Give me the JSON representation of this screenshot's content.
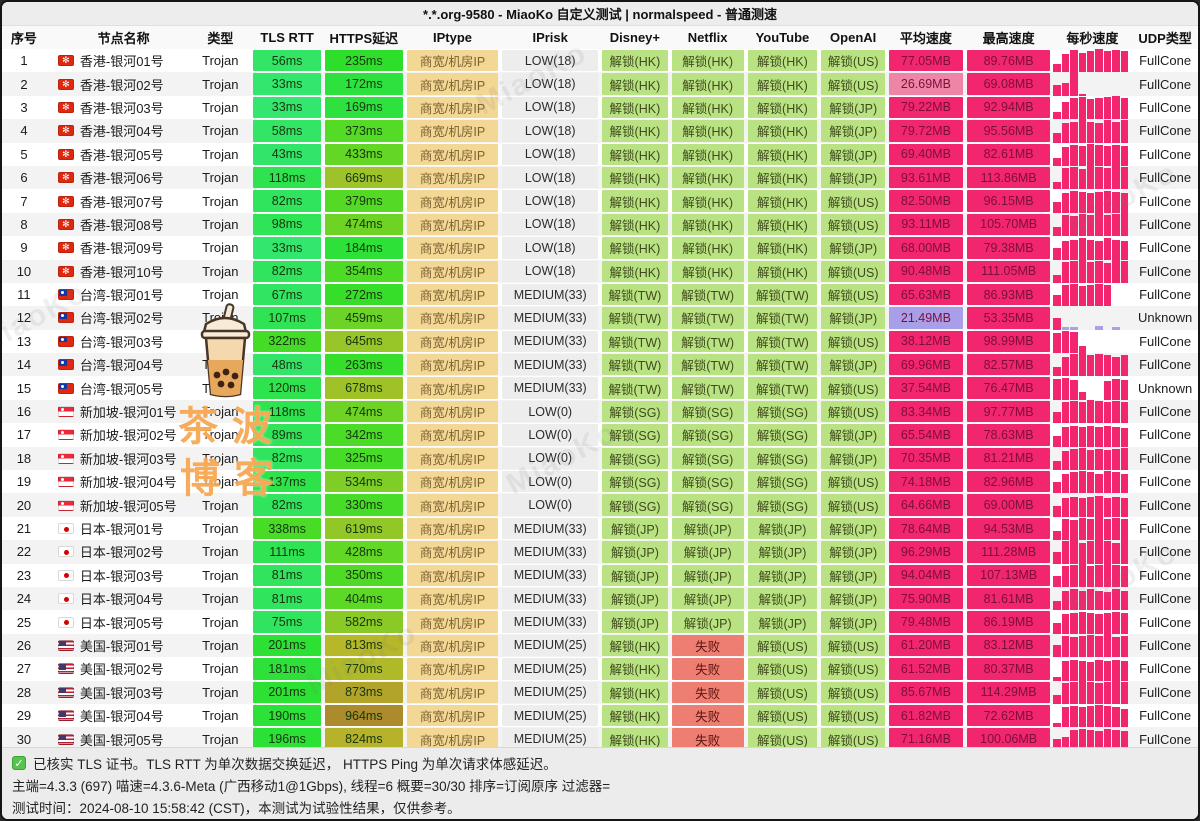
{
  "title": "*.*.org-9580 - MiaoKo 自定义测试 | normalspeed - 普通测速",
  "columns": [
    "序号",
    "节点名称",
    "类型",
    "TLS RTT",
    "HTTPS延迟",
    "IPtype",
    "IPrisk",
    "Disney+",
    "Netflix",
    "YouTube",
    "OpenAI",
    "平均速度",
    "最高速度",
    "每秒速度",
    "UDP类型"
  ],
  "colors": {
    "accent_pink": "#f2266e",
    "lat_green_fast": "#2edc70",
    "lat_brown_slow": "#ab8a2b",
    "unlock_green": "#b9e383",
    "fail_red": "#ee7e72",
    "iptype_tan": "#f3d795",
    "avg_light_pink": "#ee85a6",
    "avg_lavender": "#a89fe8",
    "bar_lavender": "#aca0e8"
  },
  "watermark": {
    "brand": "MiaoKo",
    "text1": "茶波",
    "text2": "博客"
  },
  "footer": {
    "line1": "已核实 TLS 证书。TLS RTT 为单次数据交换延迟， HTTPS Ping 为单次请求体感延迟。",
    "line2": "主端=4.3.3 (697) 喵速=4.3.6-Meta (广西移动1@1Gbps), 线程=6 概要=30/30 排序=订阅原序 过滤器=",
    "line3": "测试时间：2024-08-10 15:58:42 (CST)，本测试为试验性结果，仅供参考。"
  },
  "rows": [
    {
      "n": 1,
      "flag": "HK",
      "name": "香港-银河01号",
      "type": "Trojan",
      "tls": "56ms",
      "https": "235ms",
      "iptype": "商宽/机房IP",
      "risk": "LOW(18)",
      "disney": "解锁(HK)",
      "netflix": "解锁(HK)",
      "youtube": "解锁(HK)",
      "openai": "解锁(US)",
      "avg": "77.05MB",
      "max": "89.76MB",
      "udp": "FullCone",
      "bars": [
        0.35,
        0.8,
        0.95,
        0.85,
        0.9,
        1,
        0.9,
        0.95,
        0.9
      ]
    },
    {
      "n": 2,
      "flag": "HK",
      "name": "香港-银河02号",
      "type": "Trojan",
      "tls": "33ms",
      "https": "172ms",
      "iptype": "商宽/机房IP",
      "risk": "LOW(18)",
      "disney": "解锁(HK)",
      "netflix": "解锁(HK)",
      "youtube": "解锁(HK)",
      "openai": "解锁(US)",
      "avg": "26.69MB",
      "max": "69.08MB",
      "udp": "FullCone",
      "avg_bg": "#ee85a6",
      "bars": [
        0.45,
        0.55,
        1,
        0.06,
        0,
        0,
        0,
        0,
        0
      ]
    },
    {
      "n": 3,
      "flag": "HK",
      "name": "香港-银河03号",
      "type": "Trojan",
      "tls": "33ms",
      "https": "169ms",
      "iptype": "商宽/机房IP",
      "risk": "LOW(18)",
      "disney": "解锁(HK)",
      "netflix": "解锁(HK)",
      "youtube": "解锁(HK)",
      "openai": "解锁(JP)",
      "avg": "79.22MB",
      "max": "92.94MB",
      "udp": "FullCone",
      "bars": [
        0.3,
        0.75,
        0.9,
        0.95,
        0.85,
        0.9,
        0.95,
        1,
        0.9
      ]
    },
    {
      "n": 4,
      "flag": "HK",
      "name": "香港-银河04号",
      "type": "Trojan",
      "tls": "58ms",
      "https": "373ms",
      "iptype": "商宽/机房IP",
      "risk": "LOW(18)",
      "disney": "解锁(HK)",
      "netflix": "解锁(HK)",
      "youtube": "解锁(HK)",
      "openai": "解锁(JP)",
      "avg": "79.72MB",
      "max": "95.56MB",
      "udp": "FullCone",
      "bars": [
        0.4,
        0.85,
        0.9,
        1,
        0.9,
        0.85,
        0.95,
        0.9,
        0.95
      ]
    },
    {
      "n": 5,
      "flag": "HK",
      "name": "香港-银河05号",
      "type": "Trojan",
      "tls": "43ms",
      "https": "433ms",
      "iptype": "商宽/机房IP",
      "risk": "LOW(18)",
      "disney": "解锁(HK)",
      "netflix": "解锁(HK)",
      "youtube": "解锁(HK)",
      "openai": "解锁(JP)",
      "avg": "69.40MB",
      "max": "82.61MB",
      "udp": "FullCone",
      "bars": [
        0.35,
        0.8,
        0.9,
        0.85,
        0.95,
        0.9,
        0.85,
        0.9,
        0.85
      ]
    },
    {
      "n": 6,
      "flag": "HK",
      "name": "香港-银河06号",
      "type": "Trojan",
      "tls": "118ms",
      "https": "669ms",
      "iptype": "商宽/机房IP",
      "risk": "LOW(18)",
      "disney": "解锁(HK)",
      "netflix": "解锁(HK)",
      "youtube": "解锁(HK)",
      "openai": "解锁(JP)",
      "avg": "93.61MB",
      "max": "113.86MB",
      "udp": "FullCone",
      "bars": [
        0.3,
        0.9,
        0.95,
        0.85,
        1,
        0.95,
        0.9,
        1,
        0.95
      ]
    },
    {
      "n": 7,
      "flag": "HK",
      "name": "香港-银河07号",
      "type": "Trojan",
      "tls": "82ms",
      "https": "379ms",
      "iptype": "商宽/机房IP",
      "risk": "LOW(18)",
      "disney": "解锁(HK)",
      "netflix": "解锁(HK)",
      "youtube": "解锁(HK)",
      "openai": "解锁(US)",
      "avg": "82.50MB",
      "max": "96.15MB",
      "udp": "FullCone",
      "bars": [
        0.45,
        0.85,
        0.95,
        0.9,
        0.85,
        0.9,
        0.95,
        0.9,
        0.85
      ]
    },
    {
      "n": 8,
      "flag": "HK",
      "name": "香港-银河08号",
      "type": "Trojan",
      "tls": "98ms",
      "https": "474ms",
      "iptype": "商宽/机房IP",
      "risk": "LOW(18)",
      "disney": "解锁(HK)",
      "netflix": "解锁(HK)",
      "youtube": "解锁(HK)",
      "openai": "解锁(US)",
      "avg": "93.11MB",
      "max": "105.70MB",
      "udp": "FullCone",
      "bars": [
        0.4,
        0.9,
        0.85,
        0.95,
        0.9,
        1,
        0.9,
        0.95,
        1
      ]
    },
    {
      "n": 9,
      "flag": "HK",
      "name": "香港-银河09号",
      "type": "Trojan",
      "tls": "33ms",
      "https": "184ms",
      "iptype": "商宽/机房IP",
      "risk": "LOW(18)",
      "disney": "解锁(HK)",
      "netflix": "解锁(HK)",
      "youtube": "解锁(HK)",
      "openai": "解锁(JP)",
      "avg": "68.00MB",
      "max": "79.38MB",
      "udp": "FullCone",
      "bars": [
        0.5,
        0.8,
        0.85,
        0.9,
        0.85,
        0.8,
        0.9,
        0.85,
        0.8
      ]
    },
    {
      "n": 10,
      "flag": "HK",
      "name": "香港-银河10号",
      "type": "Trojan",
      "tls": "82ms",
      "https": "354ms",
      "iptype": "商宽/机房IP",
      "risk": "LOW(18)",
      "disney": "解锁(HK)",
      "netflix": "解锁(HK)",
      "youtube": "解锁(HK)",
      "openai": "解锁(US)",
      "avg": "90.48MB",
      "max": "111.05MB",
      "udp": "FullCone",
      "bars": [
        0.35,
        0.9,
        0.95,
        1,
        0.9,
        0.95,
        0.85,
        1,
        0.95
      ]
    },
    {
      "n": 11,
      "flag": "TW",
      "name": "台湾-银河01号",
      "type": "Trojan",
      "tls": "67ms",
      "https": "272ms",
      "iptype": "商宽/机房IP",
      "risk": "MEDIUM(33)",
      "disney": "解锁(TW)",
      "netflix": "解锁(TW)",
      "youtube": "解锁(TW)",
      "openai": "解锁(US)",
      "avg": "65.63MB",
      "max": "86.93MB",
      "udp": "FullCone",
      "bars": [
        0.5,
        0.9,
        0.95,
        0.85,
        0.9,
        0.95,
        0.9,
        0,
        0
      ]
    },
    {
      "n": 12,
      "flag": "TW",
      "name": "台湾-银河02号",
      "type": "Trojan",
      "tls": "107ms",
      "https": "459ms",
      "iptype": "商宽/机房IP",
      "risk": "MEDIUM(33)",
      "disney": "解锁(TW)",
      "netflix": "解锁(TW)",
      "youtube": "解锁(TW)",
      "openai": "解锁(JP)",
      "avg": "21.49MB",
      "max": "53.35MB",
      "udp": "Unknown",
      "avg_bg": "#a89fe8",
      "bars": [
        0.5,
        0.12,
        0.1,
        0,
        0,
        0.14,
        0,
        0.1,
        0
      ],
      "bar_colors": [
        "#f2266e",
        "#aca0e8",
        "#aca0e8",
        "#aca0e8",
        "#aca0e8",
        "#aca0e8",
        "#aca0e8",
        "#aca0e8",
        "#aca0e8"
      ]
    },
    {
      "n": 13,
      "flag": "TW",
      "name": "台湾-银河03号",
      "type": "Trojan",
      "tls": "322ms",
      "https": "645ms",
      "iptype": "商宽/机房IP",
      "risk": "MEDIUM(33)",
      "disney": "解锁(TW)",
      "netflix": "解锁(TW)",
      "youtube": "解锁(TW)",
      "openai": "解锁(US)",
      "avg": "38.12MB",
      "max": "98.99MB",
      "udp": "FullCone",
      "bars": [
        0.85,
        0.95,
        0.9,
        0.3,
        0,
        0,
        0,
        0,
        0
      ]
    },
    {
      "n": 14,
      "flag": "TW",
      "name": "台湾-银河04号",
      "type": "Trojan",
      "tls": "48ms",
      "https": "263ms",
      "iptype": "商宽/机房IP",
      "risk": "MEDIUM(33)",
      "disney": "解锁(TW)",
      "netflix": "解锁(TW)",
      "youtube": "解锁(TW)",
      "openai": "解锁(JP)",
      "avg": "69.96MB",
      "max": "82.57MB",
      "udp": "FullCone",
      "bars": [
        0.4,
        0.85,
        0.95,
        1,
        0.9,
        0.95,
        0.9,
        0.85,
        0.9
      ]
    },
    {
      "n": 15,
      "flag": "TW",
      "name": "台湾-银河05号",
      "type": "Trojan",
      "tls": "120ms",
      "https": "678ms",
      "iptype": "商宽/机房IP",
      "risk": "MEDIUM(33)",
      "disney": "解锁(TW)",
      "netflix": "解锁(TW)",
      "youtube": "解锁(TW)",
      "openai": "解锁(US)",
      "avg": "37.54MB",
      "max": "76.47MB",
      "udp": "Unknown",
      "bars": [
        0.9,
        0.95,
        0.85,
        0.35,
        0,
        0,
        0.8,
        0.9,
        0.85
      ]
    },
    {
      "n": 16,
      "flag": "SG",
      "name": "新加坡-银河01号",
      "type": "Trojan",
      "tls": "118ms",
      "https": "474ms",
      "iptype": "商宽/机房IP",
      "risk": "LOW(0)",
      "disney": "解锁(SG)",
      "netflix": "解锁(SG)",
      "youtube": "解锁(SG)",
      "openai": "解锁(US)",
      "avg": "83.34MB",
      "max": "97.77MB",
      "udp": "FullCone",
      "bars": [
        0.5,
        0.9,
        0.95,
        0.9,
        1,
        0.95,
        0.9,
        0.95,
        0.9
      ]
    },
    {
      "n": 17,
      "flag": "SG",
      "name": "新加坡-银河02号",
      "type": "Trojan",
      "tls": "89ms",
      "https": "342ms",
      "iptype": "商宽/机房IP",
      "risk": "LOW(0)",
      "disney": "解锁(SG)",
      "netflix": "解锁(SG)",
      "youtube": "解锁(SG)",
      "openai": "解锁(JP)",
      "avg": "65.54MB",
      "max": "78.63MB",
      "udp": "FullCone",
      "bars": [
        0.45,
        0.85,
        0.9,
        0.85,
        0.9,
        0.85,
        0.9,
        0.85,
        0.8
      ]
    },
    {
      "n": 18,
      "flag": "SG",
      "name": "新加坡-银河03号",
      "type": "Trojan",
      "tls": "82ms",
      "https": "325ms",
      "iptype": "商宽/机房IP",
      "risk": "LOW(0)",
      "disney": "解锁(SG)",
      "netflix": "解锁(SG)",
      "youtube": "解锁(SG)",
      "openai": "解锁(JP)",
      "avg": "70.35MB",
      "max": "81.21MB",
      "udp": "FullCone",
      "bars": [
        0.4,
        0.8,
        0.9,
        0.95,
        0.85,
        0.9,
        0.85,
        0.9,
        0.95
      ]
    },
    {
      "n": 19,
      "flag": "SG",
      "name": "新加坡-银河04号",
      "type": "Trojan",
      "tls": "137ms",
      "https": "534ms",
      "iptype": "商宽/机房IP",
      "risk": "LOW(0)",
      "disney": "解锁(SG)",
      "netflix": "解锁(SG)",
      "youtube": "解锁(SG)",
      "openai": "解锁(US)",
      "avg": "74.18MB",
      "max": "82.96MB",
      "udp": "FullCone",
      "bars": [
        0.5,
        0.85,
        0.9,
        0.95,
        0.9,
        0.85,
        0.95,
        0.9,
        0.85
      ]
    },
    {
      "n": 20,
      "flag": "SG",
      "name": "新加坡-银河05号",
      "type": "Trojan",
      "tls": "82ms",
      "https": "330ms",
      "iptype": "商宽/机房IP",
      "risk": "LOW(0)",
      "disney": "解锁(SG)",
      "netflix": "解锁(SG)",
      "youtube": "解锁(SG)",
      "openai": "解锁(US)",
      "avg": "64.66MB",
      "max": "69.00MB",
      "udp": "FullCone",
      "bars": [
        0.45,
        0.8,
        0.85,
        0.8,
        0.85,
        0.9,
        0.8,
        0.85,
        0.8
      ]
    },
    {
      "n": 21,
      "flag": "JP",
      "name": "日本-银河01号",
      "type": "Trojan",
      "tls": "338ms",
      "https": "619ms",
      "iptype": "商宽/机房IP",
      "risk": "MEDIUM(33)",
      "disney": "解锁(JP)",
      "netflix": "解锁(JP)",
      "youtube": "解锁(JP)",
      "openai": "解锁(JP)",
      "avg": "78.64MB",
      "max": "94.53MB",
      "udp": "FullCone",
      "bars": [
        0.4,
        0.9,
        0.85,
        0.95,
        0.9,
        1,
        0.9,
        0.95,
        0.9
      ]
    },
    {
      "n": 22,
      "flag": "JP",
      "name": "日本-银河02号",
      "type": "Trojan",
      "tls": "111ms",
      "https": "428ms",
      "iptype": "商宽/机房IP",
      "risk": "MEDIUM(33)",
      "disney": "解锁(JP)",
      "netflix": "解锁(JP)",
      "youtube": "解锁(JP)",
      "openai": "解锁(JP)",
      "avg": "96.29MB",
      "max": "111.28MB",
      "udp": "FullCone",
      "bars": [
        0.5,
        0.95,
        1,
        0.9,
        0.95,
        1,
        0.95,
        0.9,
        1
      ]
    },
    {
      "n": 23,
      "flag": "JP",
      "name": "日本-银河03号",
      "type": "Trojan",
      "tls": "81ms",
      "https": "350ms",
      "iptype": "商宽/机房IP",
      "risk": "MEDIUM(33)",
      "disney": "解锁(JP)",
      "netflix": "解锁(JP)",
      "youtube": "解锁(JP)",
      "openai": "解锁(JP)",
      "avg": "94.04MB",
      "max": "107.13MB",
      "udp": "FullCone",
      "bars": [
        0.45,
        0.9,
        0.95,
        1,
        0.9,
        0.95,
        1,
        0.95,
        0.9
      ]
    },
    {
      "n": 24,
      "flag": "JP",
      "name": "日本-银河04号",
      "type": "Trojan",
      "tls": "81ms",
      "https": "404ms",
      "iptype": "商宽/机房IP",
      "risk": "MEDIUM(33)",
      "disney": "解锁(JP)",
      "netflix": "解锁(JP)",
      "youtube": "解锁(JP)",
      "openai": "解锁(JP)",
      "avg": "75.90MB",
      "max": "81.61MB",
      "udp": "FullCone",
      "bars": [
        0.4,
        0.85,
        0.9,
        0.85,
        0.9,
        0.85,
        0.8,
        0.9,
        0.85
      ]
    },
    {
      "n": 25,
      "flag": "JP",
      "name": "日本-银河05号",
      "type": "Trojan",
      "tls": "75ms",
      "https": "582ms",
      "iptype": "商宽/机房IP",
      "risk": "MEDIUM(33)",
      "disney": "解锁(JP)",
      "netflix": "解锁(JP)",
      "youtube": "解锁(JP)",
      "openai": "解锁(JP)",
      "avg": "79.48MB",
      "max": "86.19MB",
      "udp": "FullCone",
      "bars": [
        0.45,
        0.85,
        0.9,
        0.95,
        0.9,
        0.85,
        0.9,
        0.95,
        0.9
      ]
    },
    {
      "n": 26,
      "flag": "US",
      "name": "美国-银河01号",
      "type": "Trojan",
      "tls": "201ms",
      "https": "813ms",
      "iptype": "商宽/机房IP",
      "risk": "MEDIUM(25)",
      "disney": "解锁(HK)",
      "netflix": "失败",
      "youtube": "解锁(US)",
      "openai": "解锁(US)",
      "avg": "61.20MB",
      "max": "83.12MB",
      "udp": "FullCone",
      "bars": [
        0.5,
        0.9,
        0.85,
        0.9,
        0.95,
        0.9,
        1,
        0.85,
        0.9
      ]
    },
    {
      "n": 27,
      "flag": "US",
      "name": "美国-银河02号",
      "type": "Trojan",
      "tls": "181ms",
      "https": "770ms",
      "iptype": "商宽/机房IP",
      "risk": "MEDIUM(25)",
      "disney": "解锁(HK)",
      "netflix": "失败",
      "youtube": "解锁(US)",
      "openai": "解锁(US)",
      "avg": "61.52MB",
      "max": "80.37MB",
      "udp": "FullCone",
      "bars": [
        0.15,
        0.85,
        0.9,
        0.85,
        0.8,
        0.9,
        0.85,
        0.9,
        0.85
      ]
    },
    {
      "n": 28,
      "flag": "US",
      "name": "美国-银河03号",
      "type": "Trojan",
      "tls": "201ms",
      "https": "873ms",
      "iptype": "商宽/机房IP",
      "risk": "MEDIUM(25)",
      "disney": "解锁(HK)",
      "netflix": "失败",
      "youtube": "解锁(US)",
      "openai": "解锁(US)",
      "avg": "85.67MB",
      "max": "114.29MB",
      "udp": "FullCone",
      "bars": [
        0.4,
        0.9,
        0.95,
        1,
        0.95,
        0.9,
        0.95,
        1,
        0.95
      ]
    },
    {
      "n": 29,
      "flag": "US",
      "name": "美国-银河04号",
      "type": "Trojan",
      "tls": "190ms",
      "https": "964ms",
      "iptype": "商宽/机房IP",
      "risk": "MEDIUM(25)",
      "disney": "解锁(HK)",
      "netflix": "失败",
      "youtube": "解锁(US)",
      "openai": "解锁(US)",
      "avg": "61.82MB",
      "max": "72.62MB",
      "udp": "FullCone",
      "bars": [
        0.2,
        0.85,
        0.9,
        0.85,
        0.9,
        0.95,
        0.9,
        0.85,
        0.8
      ]
    },
    {
      "n": 30,
      "flag": "US",
      "name": "美国-银河05号",
      "type": "Trojan",
      "tls": "196ms",
      "https": "824ms",
      "iptype": "商宽/机房IP",
      "risk": "MEDIUM(25)",
      "disney": "解锁(HK)",
      "netflix": "失败",
      "youtube": "解锁(US)",
      "openai": "解锁(US)",
      "avg": "71.16MB",
      "max": "100.06MB",
      "udp": "FullCone",
      "bars": [
        0.5,
        0.6,
        0.9,
        0.95,
        0.9,
        0.85,
        0.95,
        0.9,
        0.85
      ]
    }
  ]
}
